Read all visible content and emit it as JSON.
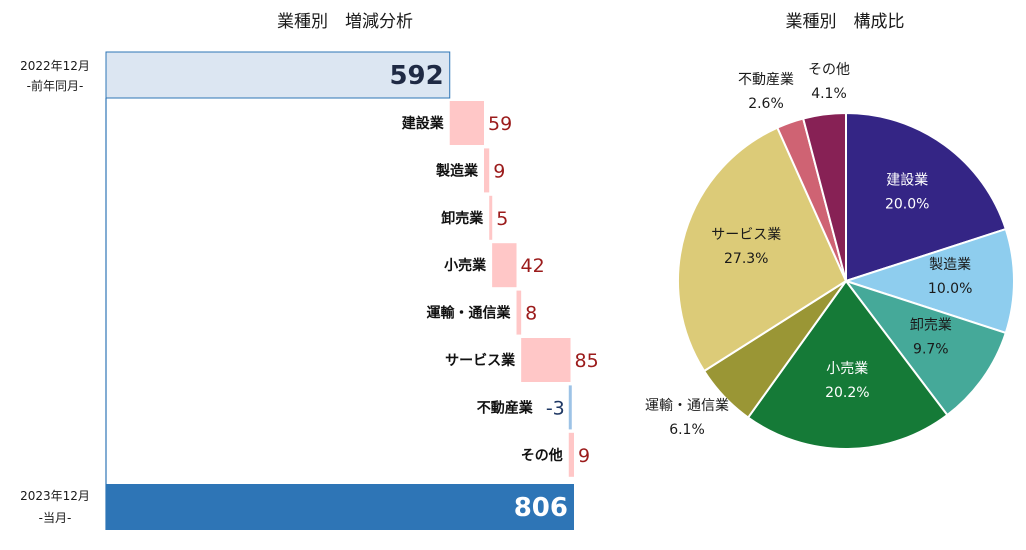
{
  "colors": {
    "base_prev": "#dce6f2",
    "base_prev_border": "#2e75b6",
    "base_curr": "#2e75b6",
    "increase": "#ffc7c7",
    "decrease": "#9dc3e6",
    "increase_label": "#9b1b1b",
    "decrease_label": "#1f3864",
    "axis_line": "#2e75b6"
  },
  "chart_data": [
    {
      "type": "bar",
      "subtype": "waterfall",
      "orientation": "horizontal",
      "title": "業種別　増減分析",
      "start": {
        "label_line1": "2022年12月",
        "label_line2": "-前年同月-",
        "value": 592
      },
      "end": {
        "label_line1": "2023年12月",
        "label_line2": "-当月-",
        "value": 806
      },
      "categories": [
        "建設業",
        "製造業",
        "卸売業",
        "小売業",
        "運輸・通信業",
        "サービス業",
        "不動産業",
        "その他"
      ],
      "values": [
        59,
        9,
        5,
        42,
        8,
        85,
        -3,
        9
      ]
    },
    {
      "type": "pie",
      "title": "業種別　構成比",
      "start_angle": "12 o'clock, clockwise",
      "slices": [
        {
          "name": "建設業",
          "value": 20.0,
          "label": "20.0%",
          "color": "#342585",
          "label_color": "#ffffff",
          "label_position": "inside"
        },
        {
          "name": "製造業",
          "value": 10.0,
          "label": "10.0%",
          "color": "#8ecdee",
          "label_color": "#1a1a1a",
          "label_position": "inside"
        },
        {
          "name": "卸売業",
          "value": 9.7,
          "label": "9.7%",
          "color": "#45a999",
          "label_color": "#1a1a1a",
          "label_position": "inside"
        },
        {
          "name": "小売業",
          "value": 20.2,
          "label": "20.2%",
          "color": "#157a37",
          "label_color": "#ffffff",
          "label_position": "inside"
        },
        {
          "name": "運輸・通信業",
          "value": 6.1,
          "label": "6.1%",
          "color": "#9a9635",
          "label_color": "#1a1a1a",
          "label_position": "outside"
        },
        {
          "name": "サービス業",
          "value": 27.3,
          "label": "27.3%",
          "color": "#dccb78",
          "label_color": "#1a1a1a",
          "label_position": "inside"
        },
        {
          "name": "不動産業",
          "value": 2.6,
          "label": "2.6%",
          "color": "#cf6373",
          "label_color": "#1a1a1a",
          "label_position": "outside"
        },
        {
          "name": "その他",
          "value": 4.1,
          "label": "4.1%",
          "color": "#872155",
          "label_color": "#1a1a1a",
          "label_position": "outside"
        }
      ]
    }
  ]
}
